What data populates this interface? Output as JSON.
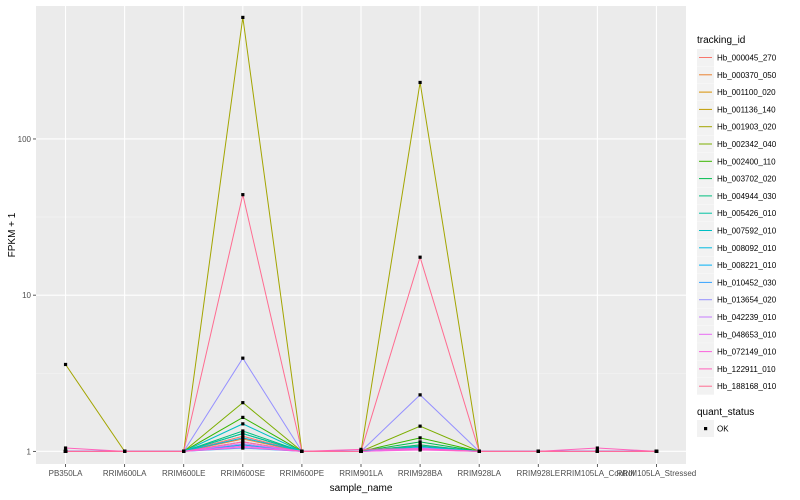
{
  "chart_data": {
    "type": "line",
    "xlabel": "sample_name",
    "ylabel": "FPKM + 1",
    "y_scale": "log10",
    "ylim": [
      0.83,
      710
    ],
    "y_ticks": [
      1,
      10,
      100
    ],
    "y_tick_labels": [
      "1",
      "10",
      "100"
    ],
    "grid": true,
    "legend_position": "right",
    "categories": [
      "PB350LA",
      "RRIM600LA",
      "RRIM600LE",
      "RRIM600SE",
      "RRIM600PE",
      "RRIM901LA",
      "RRIM928BA",
      "RRIM928LA",
      "RRIM928LE",
      "RRIM105LA_Control",
      "RRIM105LA_Stressed"
    ],
    "color_legend_title": "tracking_id",
    "series": [
      {
        "name": "Hb_000045_270",
        "color": "#F8766D",
        "values": [
          1,
          1,
          1,
          1.25,
          1,
          1,
          1.1,
          1,
          1,
          1,
          1
        ]
      },
      {
        "name": "Hb_000370_050",
        "color": "#EA8331",
        "values": [
          1,
          1,
          1,
          1.2,
          1,
          1,
          1.08,
          1,
          1,
          1,
          1
        ]
      },
      {
        "name": "Hb_001100_020",
        "color": "#D89000",
        "values": [
          1,
          1,
          1,
          1.15,
          1,
          1,
          1.05,
          1,
          1,
          1,
          1
        ]
      },
      {
        "name": "Hb_001136_140",
        "color": "#C09B00",
        "values": [
          1,
          1,
          1,
          1.1,
          1,
          1,
          1.04,
          1,
          1,
          1,
          1
        ]
      },
      {
        "name": "Hb_001903_020",
        "color": "#A3A500",
        "values": [
          3.6,
          1,
          1,
          600,
          1,
          1,
          230,
          1,
          1,
          1,
          1
        ]
      },
      {
        "name": "Hb_002342_040",
        "color": "#7CAE00",
        "values": [
          1,
          1,
          1,
          2.05,
          1,
          1,
          1.45,
          1,
          1,
          1,
          1
        ]
      },
      {
        "name": "Hb_002400_110",
        "color": "#39B600",
        "values": [
          1,
          1,
          1,
          1.65,
          1,
          1,
          1.22,
          1,
          1,
          1,
          1
        ]
      },
      {
        "name": "Hb_003702_020",
        "color": "#00BB4E",
        "values": [
          1,
          1,
          1,
          1.3,
          1,
          1,
          1.15,
          1,
          1,
          1,
          1
        ]
      },
      {
        "name": "Hb_004944_030",
        "color": "#00BF7D",
        "values": [
          1,
          1,
          1,
          1.35,
          1,
          1,
          1.1,
          1,
          1,
          1,
          1
        ]
      },
      {
        "name": "Hb_005426_010",
        "color": "#00C1A3",
        "values": [
          1,
          1,
          1,
          1.3,
          1,
          1,
          1.08,
          1,
          1,
          1,
          1
        ]
      },
      {
        "name": "Hb_007592_010",
        "color": "#00BFC4",
        "values": [
          1,
          1,
          1,
          1.5,
          1,
          1,
          1.06,
          1,
          1,
          1,
          1
        ]
      },
      {
        "name": "Hb_008092_010",
        "color": "#00BAE0",
        "values": [
          1,
          1,
          1,
          1.22,
          1,
          1,
          1.05,
          1,
          1,
          1,
          1
        ]
      },
      {
        "name": "Hb_008221_010",
        "color": "#00B0F6",
        "values": [
          1,
          1,
          1,
          1.1,
          1,
          1,
          1.06,
          1,
          1,
          1,
          1
        ]
      },
      {
        "name": "Hb_010452_030",
        "color": "#35A2FF",
        "values": [
          1,
          1,
          1,
          1.05,
          1,
          1,
          1.03,
          1,
          1,
          1,
          1
        ]
      },
      {
        "name": "Hb_013654_020",
        "color": "#9590FF",
        "values": [
          1,
          1,
          1,
          3.95,
          1,
          1,
          2.3,
          1,
          1,
          1,
          1
        ]
      },
      {
        "name": "Hb_042239_010",
        "color": "#C77CFF",
        "values": [
          1,
          1,
          1,
          1.12,
          1,
          1,
          1.05,
          1,
          1,
          1,
          1
        ]
      },
      {
        "name": "Hb_048653_010",
        "color": "#E76BF3",
        "values": [
          1,
          1,
          1,
          1.08,
          1,
          1,
          1.03,
          1,
          1,
          1,
          1
        ]
      },
      {
        "name": "Hb_072149_010",
        "color": "#FA62DB",
        "values": [
          1,
          1,
          1,
          1.06,
          1,
          1,
          1.02,
          1,
          1,
          1,
          1
        ]
      },
      {
        "name": "Hb_122911_010",
        "color": "#FF62BC",
        "values": [
          1.05,
          1,
          1,
          1.15,
          1,
          1.03,
          1.04,
          1,
          1,
          1.05,
          1
        ]
      },
      {
        "name": "Hb_188168_010",
        "color": "#FF6C91",
        "values": [
          1,
          1,
          1,
          44,
          1,
          1,
          17.5,
          1,
          1,
          1,
          1
        ]
      }
    ],
    "shape_legend_title": "quant_status",
    "shape_legend_entries": [
      "OK"
    ],
    "point_color": "#000000"
  },
  "colors": {
    "panel_background": "#EBEBEB",
    "grid_major": "#FFFFFF",
    "grid_minor": "#F5F5F5",
    "tick_color": "#333333"
  }
}
